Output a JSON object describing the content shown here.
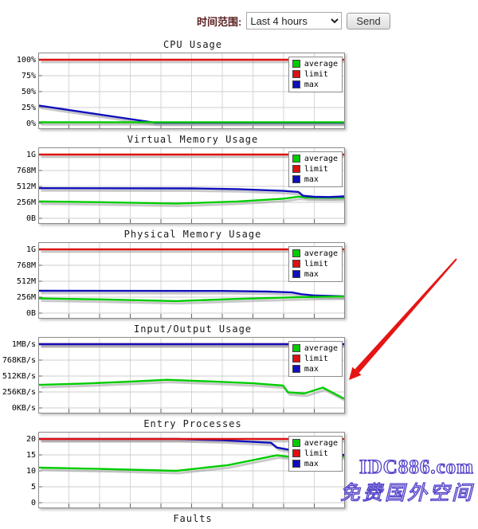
{
  "header": {
    "label": "时间范围:",
    "select_value": "Last 4 hours",
    "send_label": "Send"
  },
  "legend": {
    "entries": [
      {
        "label": "average",
        "color": "#00cc00"
      },
      {
        "label": "limit",
        "color": "#dd1111"
      },
      {
        "label": "max",
        "color": "#0f0fbb"
      }
    ]
  },
  "watermark": {
    "line1": "IDC886.com",
    "line2": "免费国外空间",
    "color": "#5140c8"
  },
  "annotation": {
    "type": "red-arrow",
    "color": "#e51515",
    "points_to": "Input/Output Usage chart"
  },
  "chart_data": [
    {
      "type": "line",
      "title": "CPU Usage",
      "ymax": 100,
      "ticks": [
        "0%",
        "25%",
        "50%",
        "75%",
        "100%"
      ],
      "legend_position": "top-right",
      "grid": true,
      "series": [
        {
          "name": "limit",
          "color": "#dd1111",
          "points": [
            [
              0,
              100
            ],
            [
              1,
              100
            ]
          ]
        },
        {
          "name": "max",
          "color": "#0f0fbb",
          "points": [
            [
              0,
              28
            ],
            [
              0.38,
              1.2
            ],
            [
              1,
              1.2
            ]
          ]
        },
        {
          "name": "average",
          "color": "#00cc00",
          "points": [
            [
              0,
              2
            ],
            [
              1,
              2
            ]
          ]
        }
      ]
    },
    {
      "type": "line",
      "title": "Virtual Memory Usage",
      "ymax": 1024,
      "ticks": [
        "0B",
        "256M",
        "512M",
        "768M",
        "1G"
      ],
      "legend_position": "top-right",
      "grid": true,
      "series": [
        {
          "name": "limit",
          "color": "#dd1111",
          "points": [
            [
              0,
              1024
            ],
            [
              1,
              1024
            ]
          ]
        },
        {
          "name": "average",
          "color": "#00cc00",
          "points": [
            [
              0,
              272
            ],
            [
              0.2,
              258
            ],
            [
              0.45,
              235
            ],
            [
              0.65,
              270
            ],
            [
              0.8,
              315
            ],
            [
              0.85,
              348
            ],
            [
              0.88,
              332
            ],
            [
              1,
              330
            ]
          ]
        },
        {
          "name": "max",
          "color": "#0f0fbb",
          "points": [
            [
              0,
              484
            ],
            [
              0.5,
              480
            ],
            [
              0.65,
              468
            ],
            [
              0.8,
              440
            ],
            [
              0.85,
              424
            ],
            [
              0.865,
              362
            ],
            [
              0.9,
              346
            ],
            [
              0.95,
              342
            ],
            [
              1,
              352
            ]
          ]
        }
      ]
    },
    {
      "type": "line",
      "title": "Physical Memory Usage",
      "ymax": 1024,
      "ticks": [
        "0B",
        "256M",
        "512M",
        "768M",
        "1G"
      ],
      "legend_position": "top-right",
      "grid": true,
      "series": [
        {
          "name": "limit",
          "color": "#dd1111",
          "points": [
            [
              0,
              1024
            ],
            [
              1,
              1024
            ]
          ]
        },
        {
          "name": "max",
          "color": "#0f0fbb",
          "points": [
            [
              0,
              358
            ],
            [
              0.6,
              356
            ],
            [
              0.75,
              346
            ],
            [
              0.83,
              332
            ],
            [
              0.86,
              304
            ],
            [
              0.9,
              284
            ],
            [
              1,
              270
            ]
          ]
        },
        {
          "name": "average",
          "color": "#00cc00",
          "points": [
            [
              0,
              235
            ],
            [
              0.2,
              220
            ],
            [
              0.45,
              193
            ],
            [
              0.65,
              228
            ],
            [
              0.8,
              248
            ],
            [
              0.9,
              260
            ],
            [
              1,
              268
            ]
          ]
        }
      ]
    },
    {
      "type": "line",
      "title": "Input/Output Usage",
      "ymax": 1024,
      "ticks": [
        "0KB/s",
        "256KB/s",
        "512KB/s",
        "768KB/s",
        "1MB/s"
      ],
      "legend_position": "top-right",
      "grid": true,
      "series": [
        {
          "name": "limit",
          "color": "#dd1111",
          "points": [
            [
              0,
              1024
            ],
            [
              1,
              1024
            ]
          ]
        },
        {
          "name": "average",
          "color": "#00cc00",
          "points": [
            [
              0,
              370
            ],
            [
              0.15,
              392
            ],
            [
              0.3,
              422
            ],
            [
              0.42,
              452
            ],
            [
              0.55,
              428
            ],
            [
              0.7,
              395
            ],
            [
              0.8,
              358
            ],
            [
              0.815,
              252
            ],
            [
              0.87,
              232
            ],
            [
              0.93,
              326
            ],
            [
              1,
              148
            ]
          ]
        },
        {
          "name": "max",
          "color": "#0f0fbb",
          "points": [
            [
              0,
              1024
            ],
            [
              1,
              1024
            ]
          ]
        }
      ]
    },
    {
      "type": "line",
      "title": "Entry Processes",
      "ymax": 20,
      "ticks": [
        "0",
        "5",
        "10",
        "15",
        "20"
      ],
      "legend_position": "top-right",
      "grid": true,
      "series": [
        {
          "name": "average",
          "color": "#00cc00",
          "points": [
            [
              0,
              11
            ],
            [
              0.2,
              10.6
            ],
            [
              0.45,
              10
            ],
            [
              0.62,
              11.8
            ],
            [
              0.78,
              14.9
            ],
            [
              0.82,
              14.4
            ],
            [
              1,
              14.5
            ]
          ]
        },
        {
          "name": "max",
          "color": "#0f0fbb",
          "points": [
            [
              0,
              20
            ],
            [
              0.45,
              20
            ],
            [
              0.6,
              19.6
            ],
            [
              0.76,
              18.8
            ],
            [
              0.78,
              17.3
            ],
            [
              0.82,
              16.6
            ],
            [
              0.88,
              15.3
            ],
            [
              1,
              15
            ]
          ]
        },
        {
          "name": "limit",
          "color": "#dd1111",
          "points": [
            [
              0,
              20
            ],
            [
              1,
              20
            ]
          ]
        }
      ]
    },
    {
      "type": "line",
      "title": "Faults",
      "ymax": 1,
      "ticks": [],
      "legend_position": "top-right",
      "grid": true,
      "series": []
    }
  ]
}
